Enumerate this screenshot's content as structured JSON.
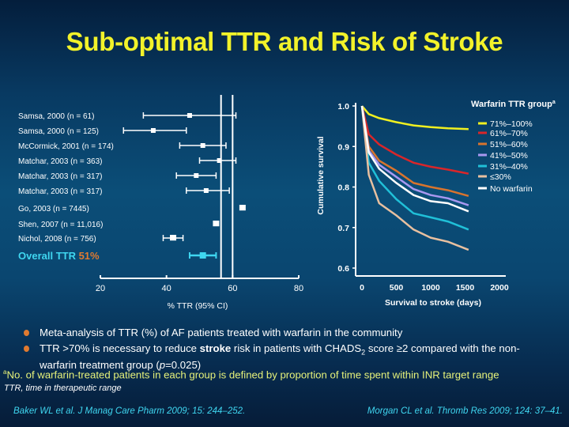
{
  "title": "Sub-optimal TTR and Risk of Stroke",
  "colors": {
    "title": "#f2f22a",
    "overall": "#3fd6f0",
    "overall_value": "#e07a30",
    "bullet": "#e07a30",
    "footnote": "#e6f27a"
  },
  "chart_data": [
    {
      "type": "forest",
      "xlabel": "% TTR (95% CI)",
      "xlim": [
        20,
        80
      ],
      "xticks": [
        "20",
        "40",
        "60",
        "80"
      ],
      "reference_lines": [
        56.5,
        60
      ],
      "studies": [
        {
          "label": "Samsa, 2000 (n = 61)",
          "estimate": 47,
          "lo": 33,
          "hi": 61
        },
        {
          "label": "Samsa, 2000 (n = 125)",
          "estimate": 36,
          "lo": 27,
          "hi": 46
        },
        {
          "label": "McCormick, 2001 (n = 174)",
          "estimate": 51,
          "lo": 44,
          "hi": 58
        },
        {
          "label": "Matchar, 2003 (n = 363)",
          "estimate": 56,
          "lo": 50,
          "hi": 61
        },
        {
          "label": "Matchar, 2003 (n = 317)",
          "estimate": 49,
          "lo": 43,
          "hi": 55
        },
        {
          "label": "Matchar, 2003 (n = 317)",
          "estimate": 52,
          "lo": 46,
          "hi": 59
        },
        {
          "label": "Go, 2003 (n = 7445)",
          "estimate": 63,
          "lo": null,
          "hi": null
        },
        {
          "label": "Shen, 2007 (n = 11,016)",
          "estimate": 55,
          "lo": null,
          "hi": null
        },
        {
          "label": "Nichol, 2008 (n = 756)",
          "estimate": 42,
          "lo": 39,
          "hi": 45
        }
      ],
      "overall": {
        "label": "Overall TTR",
        "value_label": "51%",
        "estimate": 51,
        "lo": 47,
        "hi": 55
      }
    },
    {
      "type": "line",
      "xlabel": "Survival to stroke (days)",
      "ylabel": "Cumulative survival",
      "xlim": [
        0,
        2000
      ],
      "ylim": [
        0.6,
        1.0
      ],
      "xticks": [
        "0",
        "500",
        "1000",
        "1500",
        "2000"
      ],
      "yticks": [
        "0.6",
        "0.7",
        "0.8",
        "0.9",
        "1.0"
      ],
      "legend_title": "Warfarin TTR group",
      "legend_title_sup": "a",
      "legend_position": "top-right",
      "x": [
        0,
        100,
        250,
        500,
        750,
        1000,
        1250,
        1550
      ],
      "series": [
        {
          "name": "71%–100%",
          "color": "#f0f020",
          "values": [
            1.0,
            0.98,
            0.97,
            0.96,
            0.952,
            0.948,
            0.945,
            0.943
          ]
        },
        {
          "name": "61%–70%",
          "color": "#d8262a",
          "values": [
            1.0,
            0.93,
            0.905,
            0.88,
            0.86,
            0.85,
            0.843,
            0.833
          ]
        },
        {
          "name": "51%–60%",
          "color": "#d8742e",
          "values": [
            1.0,
            0.9,
            0.865,
            0.84,
            0.81,
            0.8,
            0.792,
            0.778
          ]
        },
        {
          "name": "41%–50%",
          "color": "#a898f0",
          "values": [
            1.0,
            0.89,
            0.855,
            0.825,
            0.795,
            0.78,
            0.772,
            0.755
          ]
        },
        {
          "name": "31%–40%",
          "color": "#20c0d8",
          "values": [
            1.0,
            0.86,
            0.815,
            0.77,
            0.735,
            0.725,
            0.715,
            0.695
          ]
        },
        {
          "name": "≤30%",
          "color": "#e8c0a0",
          "values": [
            1.0,
            0.83,
            0.76,
            0.73,
            0.695,
            0.675,
            0.665,
            0.645
          ]
        },
        {
          "name": "No warfarin",
          "color": "#ffffff",
          "values": [
            1.0,
            0.885,
            0.845,
            0.81,
            0.78,
            0.765,
            0.76,
            0.74
          ]
        }
      ]
    }
  ],
  "bullets": [
    {
      "text": "Meta-analysis of TTR (%) of AF patients treated with warfarin in the community"
    },
    {
      "pre": "TTR >70% is necessary to reduce ",
      "bold": "stroke",
      "post": " risk in patients with CHADS",
      "sub": "2",
      "post2": " score ≥2 compared with the non-",
      "line2_pre": "warfarin treatment group (",
      "italic": "p",
      "line2_post": "=0.025)"
    }
  ],
  "footnote": {
    "sup": "a",
    "text": "No. of warfarin-treated patients in each group is defined by proportion of time spent within INR target range"
  },
  "abbreviation": "TTR, time in therapeutic range",
  "references": [
    "Baker WL et al. J Manag Care Pharm 2009; 15: 244–252.",
    "Morgan CL et al. Thromb Res 2009; 124: 37–41."
  ]
}
